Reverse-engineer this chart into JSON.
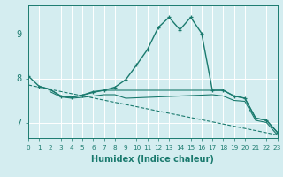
{
  "xlabel": "Humidex (Indice chaleur)",
  "background_color": "#d4edf0",
  "grid_color": "#ffffff",
  "line_color": "#1a7a6e",
  "xlim": [
    0,
    23
  ],
  "ylim": [
    6.65,
    9.65
  ],
  "yticks": [
    7,
    8,
    9
  ],
  "xticks": [
    0,
    1,
    2,
    3,
    4,
    5,
    6,
    7,
    8,
    9,
    10,
    11,
    12,
    13,
    14,
    15,
    16,
    17,
    18,
    19,
    20,
    21,
    22,
    23
  ],
  "lines": [
    {
      "x": [
        0,
        1,
        2,
        3,
        4,
        5,
        6,
        7,
        8,
        9,
        10,
        11,
        12,
        13,
        14,
        15,
        16,
        17,
        18,
        19,
        20,
        21,
        22,
        23
      ],
      "y": [
        8.05,
        7.82,
        7.75,
        7.6,
        7.57,
        7.62,
        7.7,
        7.73,
        7.8,
        7.97,
        8.3,
        8.65,
        9.15,
        9.38,
        9.1,
        9.38,
        9.02,
        7.73,
        7.73,
        7.6,
        7.55,
        7.1,
        7.05,
        6.78
      ],
      "marker": "+",
      "linewidth": 1.0,
      "linestyle": "-"
    },
    {
      "x": [
        1,
        2,
        3,
        4,
        5,
        6,
        7,
        8,
        9,
        10,
        17,
        18,
        19,
        20,
        21,
        22,
        23
      ],
      "y": [
        7.82,
        7.75,
        7.6,
        7.57,
        7.62,
        7.68,
        7.73,
        7.73,
        7.73,
        7.73,
        7.73,
        7.73,
        7.6,
        7.55,
        7.1,
        7.05,
        6.78
      ],
      "marker": null,
      "linewidth": 0.8,
      "linestyle": "-"
    },
    {
      "x": [
        2,
        3,
        4,
        5,
        6,
        7,
        8,
        9,
        17,
        18,
        19,
        20,
        21,
        22,
        23
      ],
      "y": [
        7.7,
        7.58,
        7.55,
        7.57,
        7.6,
        7.63,
        7.63,
        7.55,
        7.63,
        7.6,
        7.5,
        7.48,
        7.05,
        7.0,
        6.72
      ],
      "marker": null,
      "linewidth": 0.8,
      "linestyle": "-"
    },
    {
      "x": [
        0,
        23
      ],
      "y": [
        7.85,
        6.72
      ],
      "marker": null,
      "linewidth": 0.8,
      "linestyle": "--"
    }
  ]
}
